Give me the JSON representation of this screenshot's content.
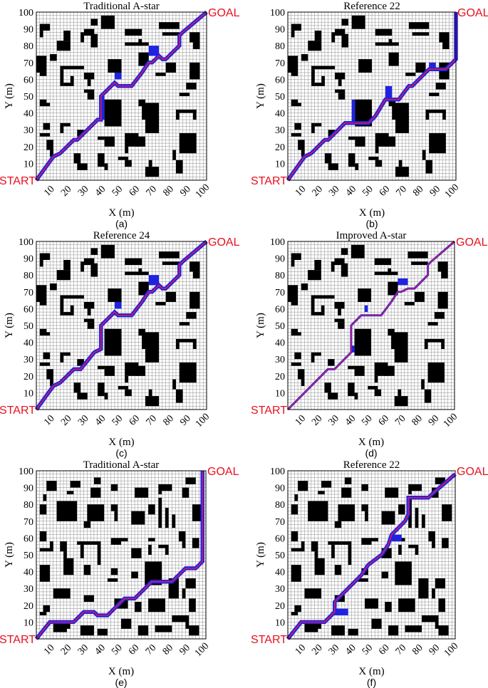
{
  "colors": {
    "grid": "#8c8c8c",
    "gridBg": "#ffffff",
    "obstacle": "#000000",
    "pathOuter": "#1f23e0",
    "pathInner": "#d6195a",
    "label": "#e8101f",
    "text": "#000000"
  },
  "labels": {
    "start": "START",
    "goal": "GOAL",
    "xlabel": "X (m)",
    "ylabel": "Y (m)"
  },
  "axes": {
    "xticks": [
      "10",
      "20",
      "30",
      "40",
      "50",
      "60",
      "70",
      "80",
      "90",
      "100"
    ],
    "yticks": [
      "10",
      "20",
      "30",
      "40",
      "50",
      "60",
      "70",
      "80",
      "90",
      "100"
    ],
    "xlim": [
      0,
      100
    ],
    "ylim": [
      0,
      100
    ]
  },
  "panels": [
    {
      "title": "Traditional A-star",
      "caption": "(a)",
      "obstacle_set": 0,
      "path": [
        [
          0,
          0
        ],
        [
          10,
          14
        ],
        [
          14,
          16
        ],
        [
          22,
          24
        ],
        [
          24,
          24
        ],
        [
          34,
          34
        ],
        [
          36,
          36
        ],
        [
          38,
          36
        ],
        [
          38,
          50
        ],
        [
          44,
          56
        ],
        [
          46,
          58
        ],
        [
          48,
          56
        ],
        [
          56,
          56
        ],
        [
          62,
          64
        ],
        [
          66,
          70
        ],
        [
          68,
          70
        ],
        [
          72,
          74
        ],
        [
          74,
          72
        ],
        [
          76,
          72
        ],
        [
          84,
          80
        ],
        [
          84,
          86
        ],
        [
          86,
          88
        ],
        [
          100,
          100
        ]
      ],
      "exploredBlocks": [
        [
          46,
          60,
          4,
          4
        ],
        [
          66,
          74,
          6,
          6
        ],
        [
          38,
          36,
          2,
          14
        ]
      ]
    },
    {
      "title": "Reference 22",
      "caption": "(b)",
      "obstacle_set": 0,
      "path": [
        [
          0,
          0
        ],
        [
          10,
          14
        ],
        [
          14,
          16
        ],
        [
          22,
          24
        ],
        [
          24,
          24
        ],
        [
          34,
          34
        ],
        [
          38,
          34
        ],
        [
          48,
          34
        ],
        [
          52,
          38
        ],
        [
          58,
          48
        ],
        [
          66,
          48
        ],
        [
          72,
          56
        ],
        [
          74,
          56
        ],
        [
          84,
          66
        ],
        [
          94,
          66
        ],
        [
          100,
          72
        ],
        [
          100,
          100
        ]
      ],
      "exploredBlocks": [
        [
          58,
          48,
          4,
          8
        ],
        [
          38,
          34,
          2,
          14
        ],
        [
          84,
          66,
          4,
          4
        ]
      ]
    },
    {
      "title": "Reference 24",
      "caption": "(c)",
      "obstacle_set": 0,
      "path": [
        [
          0,
          0
        ],
        [
          10,
          14
        ],
        [
          14,
          16
        ],
        [
          22,
          24
        ],
        [
          26,
          24
        ],
        [
          34,
          34
        ],
        [
          38,
          36
        ],
        [
          38,
          50
        ],
        [
          44,
          56
        ],
        [
          46,
          58
        ],
        [
          48,
          56
        ],
        [
          56,
          56
        ],
        [
          62,
          64
        ],
        [
          66,
          70
        ],
        [
          68,
          70
        ],
        [
          72,
          74
        ],
        [
          74,
          72
        ],
        [
          76,
          72
        ],
        [
          84,
          80
        ],
        [
          84,
          86
        ],
        [
          86,
          88
        ],
        [
          100,
          100
        ]
      ],
      "exploredBlocks": [
        [
          46,
          60,
          4,
          4
        ],
        [
          66,
          74,
          6,
          6
        ]
      ]
    },
    {
      "title": "Improved A-star",
      "caption": "(d)",
      "obstacle_set": 0,
      "path": [
        [
          0,
          0
        ],
        [
          24,
          24
        ],
        [
          28,
          24
        ],
        [
          38,
          34
        ],
        [
          38,
          50
        ],
        [
          44,
          56
        ],
        [
          48,
          56
        ],
        [
          56,
          56
        ],
        [
          62,
          64
        ],
        [
          66,
          70
        ],
        [
          68,
          70
        ],
        [
          72,
          72
        ],
        [
          76,
          72
        ],
        [
          84,
          80
        ],
        [
          84,
          86
        ],
        [
          86,
          88
        ],
        [
          100,
          100
        ]
      ],
      "exploredBlocks": [
        [
          46,
          58,
          2,
          4
        ],
        [
          66,
          74,
          6,
          4
        ],
        [
          38,
          34,
          2,
          4
        ]
      ],
      "thin": true
    },
    {
      "title": "Traditional A-star",
      "caption": "(e)",
      "obstacle_set": 1,
      "path": [
        [
          0,
          0
        ],
        [
          8,
          10
        ],
        [
          10,
          10
        ],
        [
          22,
          10
        ],
        [
          26,
          14
        ],
        [
          28,
          16
        ],
        [
          34,
          16
        ],
        [
          36,
          14
        ],
        [
          42,
          14
        ],
        [
          44,
          16
        ],
        [
          52,
          24
        ],
        [
          58,
          24
        ],
        [
          62,
          28
        ],
        [
          68,
          34
        ],
        [
          80,
          34
        ],
        [
          88,
          42
        ],
        [
          94,
          42
        ],
        [
          98,
          46
        ],
        [
          98,
          100
        ]
      ],
      "exploredBlocks": []
    },
    {
      "title": "Reference 22",
      "caption": "(f)",
      "obstacle_set": 1,
      "path": [
        [
          0,
          0
        ],
        [
          8,
          10
        ],
        [
          10,
          10
        ],
        [
          22,
          10
        ],
        [
          26,
          14
        ],
        [
          28,
          16
        ],
        [
          28,
          22
        ],
        [
          34,
          28
        ],
        [
          44,
          38
        ],
        [
          48,
          44
        ],
        [
          56,
          50
        ],
        [
          60,
          56
        ],
        [
          62,
          62
        ],
        [
          70,
          70
        ],
        [
          72,
          74
        ],
        [
          72,
          84
        ],
        [
          84,
          84
        ],
        [
          86,
          86
        ],
        [
          100,
          98
        ]
      ],
      "exploredBlocks": [
        [
          28,
          14,
          8,
          4
        ],
        [
          62,
          58,
          6,
          4
        ]
      ]
    }
  ],
  "obstacle_sets": [
    [
      [
        2,
        89,
        6,
        4
      ],
      [
        2,
        85,
        2,
        4
      ],
      [
        16,
        83,
        4,
        6
      ],
      [
        12,
        77,
        8,
        6
      ],
      [
        8,
        71,
        4,
        4
      ],
      [
        28,
        86,
        6,
        4
      ],
      [
        26,
        82,
        2,
        6
      ],
      [
        32,
        79,
        4,
        8
      ],
      [
        38,
        90,
        8,
        8
      ],
      [
        32,
        92,
        4,
        4
      ],
      [
        52,
        86,
        10,
        4
      ],
      [
        52,
        80,
        14,
        2
      ],
      [
        60,
        80,
        2,
        4
      ],
      [
        72,
        90,
        12,
        4
      ],
      [
        74,
        86,
        10,
        2
      ],
      [
        90,
        82,
        6,
        6
      ],
      [
        92,
        78,
        4,
        4
      ],
      [
        0,
        64,
        6,
        10
      ],
      [
        2,
        62,
        4,
        2
      ],
      [
        14,
        66,
        14,
        2
      ],
      [
        14,
        56,
        2,
        10
      ],
      [
        16,
        56,
        6,
        2
      ],
      [
        20,
        58,
        2,
        4
      ],
      [
        28,
        52,
        6,
        2
      ],
      [
        30,
        48,
        4,
        4
      ],
      [
        28,
        60,
        6,
        4
      ],
      [
        30,
        56,
        2,
        4
      ],
      [
        42,
        64,
        8,
        8
      ],
      [
        60,
        68,
        6,
        8
      ],
      [
        76,
        64,
        6,
        6
      ],
      [
        70,
        62,
        6,
        2
      ],
      [
        90,
        60,
        6,
        10
      ],
      [
        88,
        54,
        6,
        4
      ],
      [
        84,
        50,
        6,
        2
      ],
      [
        2,
        46,
        4,
        2
      ],
      [
        2,
        44,
        6,
        2
      ],
      [
        40,
        32,
        10,
        16
      ],
      [
        62,
        36,
        10,
        10
      ],
      [
        60,
        44,
        4,
        4
      ],
      [
        82,
        40,
        12,
        2
      ],
      [
        92,
        36,
        2,
        6
      ],
      [
        82,
        36,
        2,
        4
      ],
      [
        4,
        30,
        4,
        4
      ],
      [
        2,
        26,
        6,
        2
      ],
      [
        14,
        28,
        2,
        6
      ],
      [
        16,
        32,
        4,
        2
      ],
      [
        24,
        26,
        4,
        4
      ],
      [
        40,
        20,
        6,
        6
      ],
      [
        36,
        24,
        4,
        2
      ],
      [
        52,
        20,
        8,
        8
      ],
      [
        52,
        16,
        2,
        4
      ],
      [
        64,
        28,
        8,
        10
      ],
      [
        58,
        20,
        6,
        6
      ],
      [
        84,
        16,
        10,
        12
      ],
      [
        6,
        18,
        4,
        6
      ],
      [
        8,
        14,
        2,
        4
      ],
      [
        22,
        10,
        4,
        6
      ],
      [
        24,
        6,
        6,
        4
      ],
      [
        36,
        8,
        4,
        8
      ],
      [
        40,
        6,
        2,
        4
      ],
      [
        52,
        8,
        4,
        4
      ],
      [
        48,
        12,
        6,
        2
      ],
      [
        64,
        2,
        8,
        6
      ],
      [
        66,
        8,
        2,
        4
      ],
      [
        80,
        12,
        2,
        6
      ],
      [
        82,
        4,
        4,
        8
      ]
    ],
    [
      [
        6,
        88,
        6,
        6
      ],
      [
        4,
        82,
        2,
        4
      ],
      [
        20,
        90,
        6,
        4
      ],
      [
        18,
        86,
        4,
        2
      ],
      [
        34,
        92,
        4,
        4
      ],
      [
        32,
        84,
        6,
        6
      ],
      [
        44,
        88,
        4,
        4
      ],
      [
        58,
        84,
        8,
        6
      ],
      [
        72,
        88,
        8,
        4
      ],
      [
        72,
        86,
        2,
        2
      ],
      [
        88,
        92,
        6,
        4
      ],
      [
        86,
        84,
        4,
        6
      ],
      [
        2,
        74,
        4,
        6
      ],
      [
        12,
        70,
        12,
        12
      ],
      [
        30,
        70,
        10,
        10
      ],
      [
        28,
        66,
        4,
        4
      ],
      [
        44,
        76,
        4,
        4
      ],
      [
        46,
        70,
        2,
        6
      ],
      [
        56,
        68,
        8,
        8
      ],
      [
        66,
        74,
        4,
        6
      ],
      [
        72,
        66,
        2,
        18
      ],
      [
        76,
        66,
        2,
        12
      ],
      [
        80,
        66,
        2,
        8
      ],
      [
        92,
        70,
        6,
        10
      ],
      [
        2,
        58,
        4,
        6
      ],
      [
        2,
        52,
        8,
        2
      ],
      [
        8,
        54,
        2,
        4
      ],
      [
        14,
        52,
        4,
        6
      ],
      [
        16,
        48,
        2,
        4
      ],
      [
        24,
        56,
        8,
        2
      ],
      [
        26,
        48,
        2,
        8
      ],
      [
        32,
        56,
        6,
        2
      ],
      [
        36,
        44,
        2,
        12
      ],
      [
        44,
        56,
        6,
        4
      ],
      [
        50,
        58,
        4,
        2
      ],
      [
        56,
        48,
        6,
        6
      ],
      [
        66,
        50,
        2,
        6
      ],
      [
        66,
        58,
        4,
        2
      ],
      [
        72,
        54,
        6,
        2
      ],
      [
        76,
        50,
        2,
        4
      ],
      [
        84,
        58,
        4,
        6
      ],
      [
        86,
        54,
        2,
        4
      ],
      [
        92,
        54,
        4,
        6
      ],
      [
        2,
        34,
        6,
        10
      ],
      [
        16,
        38,
        6,
        10
      ],
      [
        28,
        38,
        4,
        6
      ],
      [
        44,
        38,
        4,
        4
      ],
      [
        42,
        34,
        6,
        2
      ],
      [
        56,
        36,
        4,
        4
      ],
      [
        64,
        32,
        10,
        14
      ],
      [
        78,
        24,
        6,
        12
      ],
      [
        88,
        30,
        6,
        6
      ],
      [
        86,
        24,
        2,
        6
      ],
      [
        90,
        16,
        4,
        8
      ],
      [
        10,
        24,
        10,
        6
      ],
      [
        28,
        22,
        6,
        4
      ],
      [
        46,
        18,
        8,
        6
      ],
      [
        58,
        16,
        4,
        6
      ],
      [
        66,
        16,
        10,
        8
      ],
      [
        80,
        10,
        10,
        4
      ],
      [
        4,
        16,
        4,
        4
      ],
      [
        2,
        14,
        4,
        2
      ],
      [
        10,
        4,
        8,
        6
      ],
      [
        16,
        6,
        4,
        4
      ],
      [
        26,
        2,
        8,
        6
      ],
      [
        36,
        2,
        6,
        4
      ],
      [
        50,
        6,
        6,
        6
      ],
      [
        60,
        2,
        6,
        6
      ],
      [
        70,
        4,
        10,
        4
      ],
      [
        90,
        2,
        6,
        6
      ],
      [
        88,
        6,
        2,
        4
      ]
    ]
  ]
}
